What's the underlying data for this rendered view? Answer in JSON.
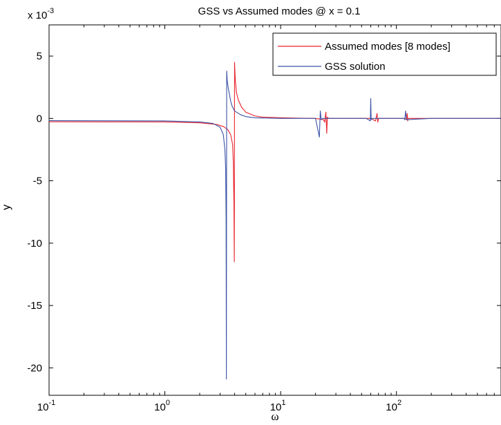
{
  "chart_data": {
    "type": "line",
    "title": "GSS vs Assumed modes @ x = 0.1",
    "xlabel": "ω",
    "ylabel": "y",
    "xscale": "log",
    "xlim": [
      0.1,
      800
    ],
    "ylim": [
      -0.0222,
      0.0075
    ],
    "y_multiplier_label": {
      "base": "x 10",
      "exponent": "-3"
    },
    "x_ticks": [
      {
        "value": 0.1,
        "base": "10",
        "exponent": "-1"
      },
      {
        "value": 1,
        "base": "10",
        "exponent": "0"
      },
      {
        "value": 10,
        "base": "10",
        "exponent": "1"
      },
      {
        "value": 100,
        "base": "10",
        "exponent": "2"
      }
    ],
    "y_ticks": [
      {
        "value": 0.005,
        "label": "5"
      },
      {
        "value": 0,
        "label": "0"
      },
      {
        "value": -0.005,
        "label": "-5"
      },
      {
        "value": -0.01,
        "label": "-10"
      },
      {
        "value": -0.015,
        "label": "-15"
      },
      {
        "value": -0.02,
        "label": "-20"
      }
    ],
    "grid": false,
    "legend_position": "top-right",
    "series": [
      {
        "name": "Assumed modes [8 modes]",
        "color": "#e8202a",
        "x": [
          0.1,
          1,
          2,
          2.8,
          3.2,
          3.5,
          3.7,
          3.85,
          3.9,
          3.95,
          3.98,
          4.0,
          4.05,
          4.15,
          4.3,
          4.6,
          5.0,
          6.0,
          7.0,
          10,
          15,
          20,
          23.5,
          24.0,
          24.6,
          25.0,
          25.3,
          26,
          40,
          60,
          66,
          68,
          69,
          70,
          80,
          118,
          122,
          124,
          125,
          126,
          130,
          200,
          400,
          800
        ],
        "y": [
          -0.00027,
          -0.00028,
          -0.00035,
          -0.00048,
          -0.00065,
          -0.0009,
          -0.0013,
          -0.0021,
          -0.0035,
          -0.0068,
          -0.0115,
          0.0045,
          0.0032,
          0.0021,
          0.0015,
          0.0009,
          0.0005,
          0.0002,
          0.0001,
          5e-05,
          2e-05,
          0.0,
          -0.0001,
          -0.0003,
          0.0005,
          -0.0012,
          0.0001,
          0.0,
          0.0,
          0.0,
          -0.0002,
          0.0004,
          -0.0003,
          0.0,
          0.0,
          0.0,
          -0.0001,
          0.0004,
          -0.0002,
          0.0,
          0.0,
          0.0,
          0.0,
          0.0
        ]
      },
      {
        "name": "GSS solution",
        "color": "#3a52a6",
        "x": [
          0.1,
          1,
          2,
          2.6,
          3.0,
          3.2,
          3.3,
          3.35,
          3.38,
          3.4,
          3.42,
          3.46,
          3.52,
          3.6,
          3.7,
          3.8,
          4.0,
          4.5,
          5.0,
          6.0,
          10,
          15,
          20,
          21.6,
          22.0,
          22.4,
          23,
          30,
          55,
          59.5,
          60,
          60.5,
          62,
          90,
          116,
          118,
          120,
          122,
          200,
          400,
          800
        ],
        "y": [
          -0.00018,
          -0.0002,
          -0.00028,
          -0.0004,
          -0.0007,
          -0.0013,
          -0.0025,
          -0.004,
          -0.008,
          -0.0209,
          0.0038,
          0.003,
          0.0025,
          0.002,
          0.0014,
          0.001,
          0.0006,
          0.0003,
          0.00015,
          5e-05,
          0.0,
          0.0,
          0.0,
          -0.0015,
          0.0006,
          -0.0001,
          0.0,
          0.0,
          0.0,
          -0.0002,
          0.0016,
          -0.0001,
          0.0,
          0.0,
          0.0,
          -0.0001,
          0.0006,
          -0.0001,
          0.0,
          0.0,
          0.0
        ]
      }
    ]
  }
}
